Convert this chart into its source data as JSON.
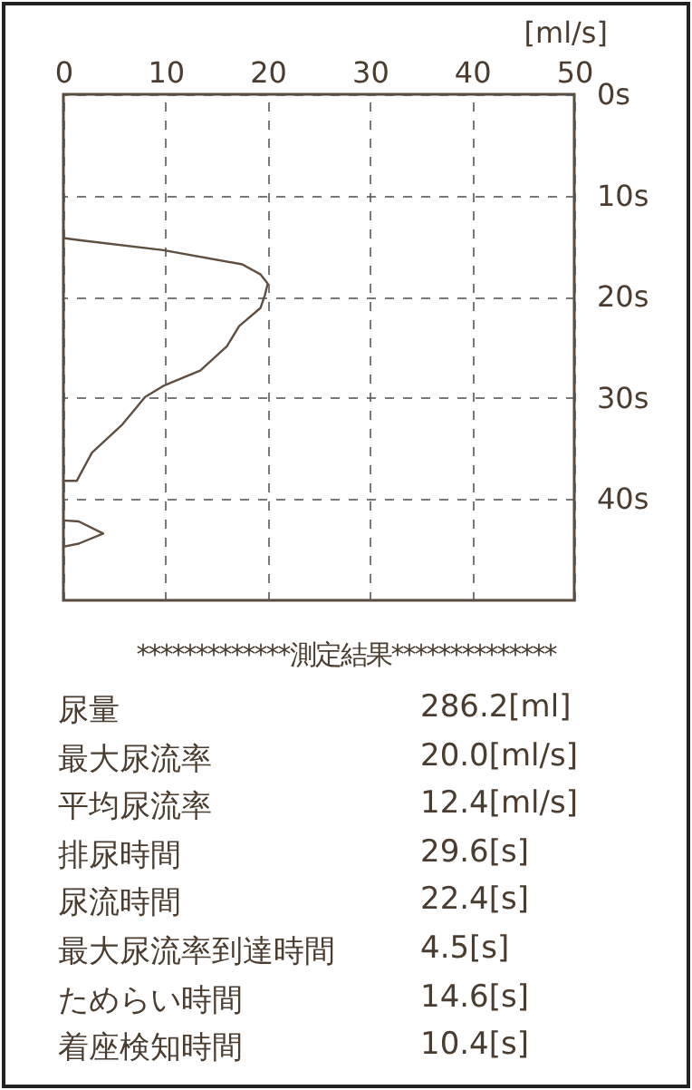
{
  "chart_data": {
    "type": "line",
    "xlabel": "[ml/s]",
    "xlim": [
      0,
      50
    ],
    "xticks": [
      0,
      10,
      20,
      30,
      40,
      50
    ],
    "ylim": [
      50,
      0
    ],
    "yticks": [
      {
        "value": 0,
        "label": "0s"
      },
      {
        "value": 10,
        "label": "10s"
      },
      {
        "value": 20,
        "label": "20s"
      },
      {
        "value": 30,
        "label": "30s"
      },
      {
        "value": 40,
        "label": "40s"
      }
    ],
    "grid": true,
    "marker": "none",
    "line_style": "solid",
    "series": [
      {
        "color": "#5e4f40",
        "x": [
          0,
          1.5,
          9.8,
          17.5,
          19.3,
          20.0,
          19.7,
          19.3,
          17.2,
          16.0,
          13.4,
          9.8,
          8.0,
          5.7,
          2.8,
          1.3,
          0
        ],
        "values": [
          14.2,
          14.4,
          15.4,
          16.8,
          17.8,
          18.7,
          19.9,
          21.1,
          22.9,
          24.9,
          27.3,
          28.8,
          29.9,
          32.7,
          35.4,
          38.2,
          38.2
        ]
      },
      {
        "color": "#5e4f40",
        "x": [
          0,
          1.5,
          3.9,
          1.5,
          0
        ],
        "values": [
          42.1,
          42.2,
          43.4,
          44.4,
          44.7
        ]
      }
    ],
    "annotations": [
      "*************測定結果**************",
      "尿量",
      "286.2[ml]",
      "最大尿流率",
      "20.0[ml/s]",
      "平均尿流率",
      "12.4[ml/s]",
      "排尿時間",
      "29.6[s]",
      "尿流時間",
      "22.4[s]",
      "最大尿流率到達時間",
      "4.5[s]",
      "ためらい時間",
      "14.6[s]",
      "着座検知時間",
      "10.4[s]"
    ]
  }
}
